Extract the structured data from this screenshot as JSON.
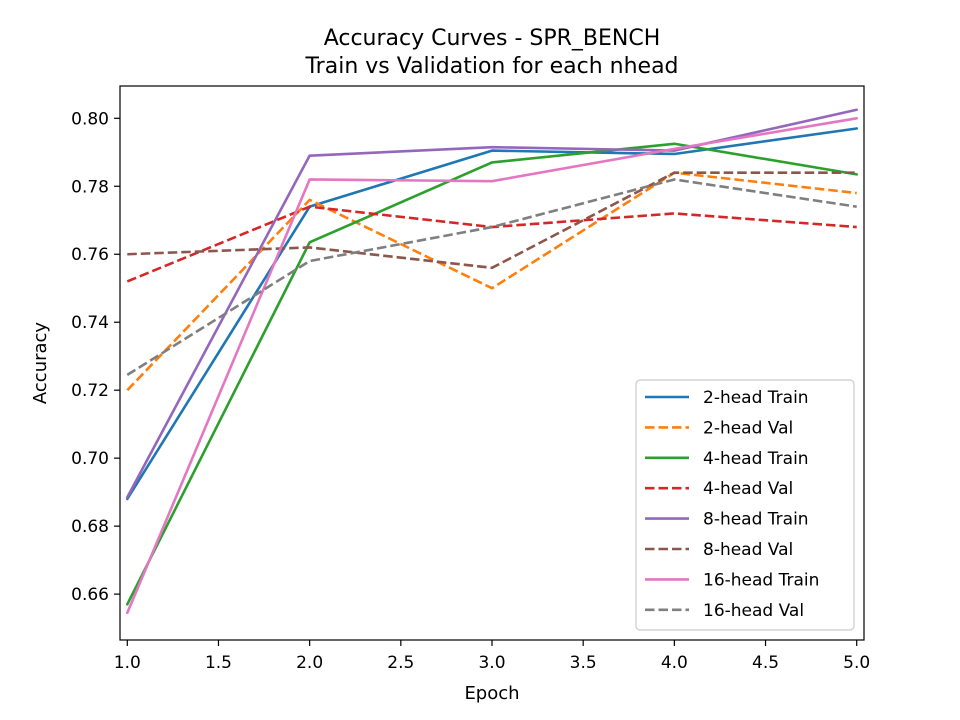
{
  "chart_data": {
    "type": "line",
    "title": "Accuracy Curves - SPR_BENCH",
    "subtitle": "Train vs Validation for each nhead",
    "xlabel": "Epoch",
    "ylabel": "Accuracy",
    "xlim": [
      0.96,
      5.04
    ],
    "ylim": [
      0.6465,
      0.8095
    ],
    "xticks": [
      1.0,
      1.5,
      2.0,
      2.5,
      3.0,
      3.5,
      4.0,
      4.5,
      5.0
    ],
    "xtick_labels": [
      "1.0",
      "1.5",
      "2.0",
      "2.5",
      "3.0",
      "3.5",
      "4.0",
      "4.5",
      "5.0"
    ],
    "yticks": [
      0.66,
      0.68,
      0.7,
      0.72,
      0.74,
      0.76,
      0.78,
      0.8
    ],
    "ytick_labels": [
      "0.66",
      "0.68",
      "0.70",
      "0.72",
      "0.74",
      "0.76",
      "0.78",
      "0.80"
    ],
    "grid": false,
    "legend_position": "lower-right",
    "x": [
      1,
      2,
      3,
      4,
      5
    ],
    "series": [
      {
        "name": "2-head Train",
        "style": "solid",
        "color": "#1f77b4",
        "values": [
          0.688,
          0.774,
          0.7905,
          0.7895,
          0.797
        ]
      },
      {
        "name": "2-head Val",
        "style": "dashed",
        "color": "#ff7f0e",
        "values": [
          0.72,
          0.776,
          0.75,
          0.784,
          0.778
        ]
      },
      {
        "name": "4-head Train",
        "style": "solid",
        "color": "#2ca02c",
        "values": [
          0.657,
          0.7635,
          0.787,
          0.7925,
          0.7835
        ]
      },
      {
        "name": "4-head Val",
        "style": "dashed",
        "color": "#d62728",
        "values": [
          0.752,
          0.774,
          0.768,
          0.772,
          0.768
        ]
      },
      {
        "name": "8-head Train",
        "style": "solid",
        "color": "#9467bd",
        "values": [
          0.6885,
          0.789,
          0.7915,
          0.7905,
          0.8025
        ]
      },
      {
        "name": "8-head Val",
        "style": "dashed",
        "color": "#8c564b",
        "values": [
          0.76,
          0.762,
          0.756,
          0.784,
          0.784
        ]
      },
      {
        "name": "16-head Train",
        "style": "solid",
        "color": "#e377c2",
        "values": [
          0.6545,
          0.782,
          0.7815,
          0.791,
          0.8
        ]
      },
      {
        "name": "16-head Val",
        "style": "dashed",
        "color": "#7f7f7f",
        "values": [
          0.7245,
          0.758,
          0.768,
          0.782,
          0.774
        ]
      }
    ]
  }
}
